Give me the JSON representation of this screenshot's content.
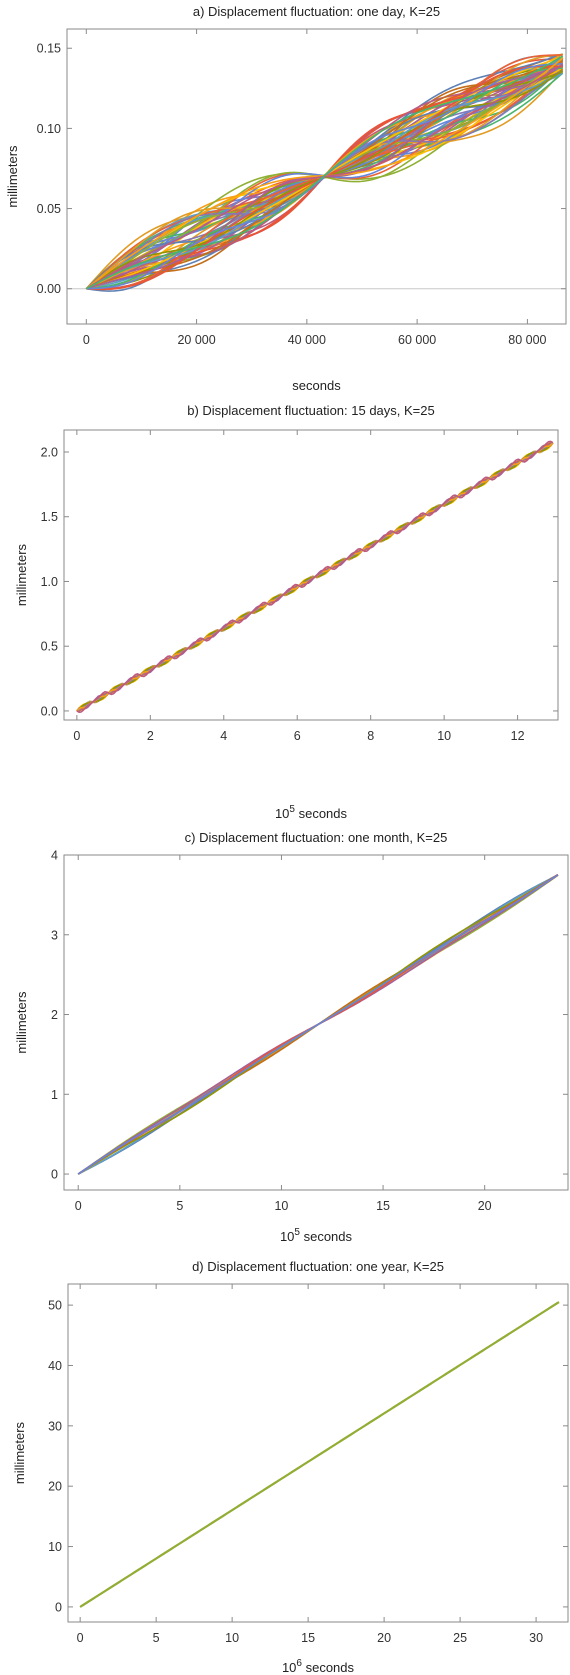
{
  "palette": [
    "#5E81B5",
    "#E19C24",
    "#8FB032",
    "#EB6235",
    "#8778B3",
    "#C56E1A",
    "#5D9EC7",
    "#FFBF00",
    "#A5609D",
    "#929600",
    "#E95536",
    "#6685D9",
    "#F89F13",
    "#BC5B80",
    "#47B66D"
  ],
  "chart_data": [
    {
      "type": "line",
      "title": "a) Displacement fluctuation: one day, K=25",
      "xlabel": "seconds",
      "xlabel_exp": "",
      "ylabel": "millimeters",
      "xlim": [
        -3500,
        87000
      ],
      "ylim": [
        -0.022,
        0.162
      ],
      "xticks": [
        0,
        20000,
        40000,
        60000,
        80000
      ],
      "xticklabels": [
        "0",
        "20 000",
        "40 000",
        "60 000",
        "80 000"
      ],
      "yticks": [
        0.0,
        0.05,
        0.1,
        0.15
      ],
      "yticklabels": [
        "0.00",
        "0.05",
        "0.10",
        "0.15"
      ],
      "zero_line": true,
      "model": {
        "series_count": 60,
        "x_end": 86400,
        "trend_start": 0.0,
        "trend_end": 0.14,
        "period": 86400,
        "amplitude_range": [
          0.002,
          0.015
        ],
        "description": "trend plus sinusoidal fluctuations; all series pass through ~0.071 near x = 43200"
      }
    },
    {
      "type": "line",
      "title": "b) Displacement fluctuation: 15 days, K=25",
      "xlabel": "seconds",
      "xlabel_exp": "5",
      "ylabel": "millimeters",
      "xlim": [
        -0.35,
        13.1
      ],
      "ylim": [
        -0.07,
        2.17
      ],
      "xticks": [
        0,
        2,
        4,
        6,
        8,
        10,
        12
      ],
      "xticklabels": [
        "0",
        "2",
        "4",
        "6",
        "8",
        "10",
        "12"
      ],
      "yticks": [
        0.0,
        0.5,
        1.0,
        1.5,
        2.0
      ],
      "yticklabels": [
        "0.0",
        "0.5",
        "1.0",
        "1.5",
        "2.0"
      ],
      "zero_line": false,
      "model": {
        "series_count": 14,
        "x_end": 12.96,
        "trend_start": 0.0,
        "trend_end": 2.07,
        "period": 0.864,
        "amplitude_range": [
          0.0,
          0.022
        ]
      }
    },
    {
      "type": "line",
      "title": "c) Displacement fluctuation: one month, K=25",
      "xlabel": "seconds",
      "xlabel_exp": "5",
      "ylabel": "millimeters",
      "xlim": [
        -0.7,
        24.1
      ],
      "ylim": [
        -0.2,
        4.0
      ],
      "xticks": [
        0,
        5,
        10,
        15,
        20
      ],
      "xticklabels": [
        "0",
        "5",
        "10",
        "15",
        "20"
      ],
      "yticks": [
        0,
        1,
        2,
        3,
        4
      ],
      "yticklabels": [
        "0",
        "1",
        "2",
        "3",
        "4"
      ],
      "zero_line": false,
      "model": {
        "series_count": 12,
        "x_end": 23.6,
        "trend_start": 0.0,
        "trend_end": 3.75,
        "period": 23.6,
        "amplitude_range": [
          0.0,
          0.045
        ]
      }
    },
    {
      "type": "line",
      "title": "d) Displacement fluctuation: one year, K=25",
      "xlabel": "seconds",
      "xlabel_exp": "6",
      "ylabel": "millimeters",
      "xlim": [
        -0.8,
        32.1
      ],
      "ylim": [
        -2.5,
        53.5
      ],
      "xticks": [
        0,
        5,
        10,
        15,
        20,
        25,
        30
      ],
      "xticklabels": [
        "0",
        "5",
        "10",
        "15",
        "20",
        "25",
        "30"
      ],
      "yticks": [
        0,
        10,
        20,
        30,
        40,
        50
      ],
      "yticklabels": [
        "0",
        "10",
        "20",
        "30",
        "40",
        "50"
      ],
      "zero_line": false,
      "model": {
        "series_count": 3,
        "x_end": 31.5,
        "trend_start": 0.0,
        "trend_end": 50.5,
        "period": 31.5,
        "amplitude_range": [
          0.0,
          0.0
        ]
      }
    }
  ]
}
